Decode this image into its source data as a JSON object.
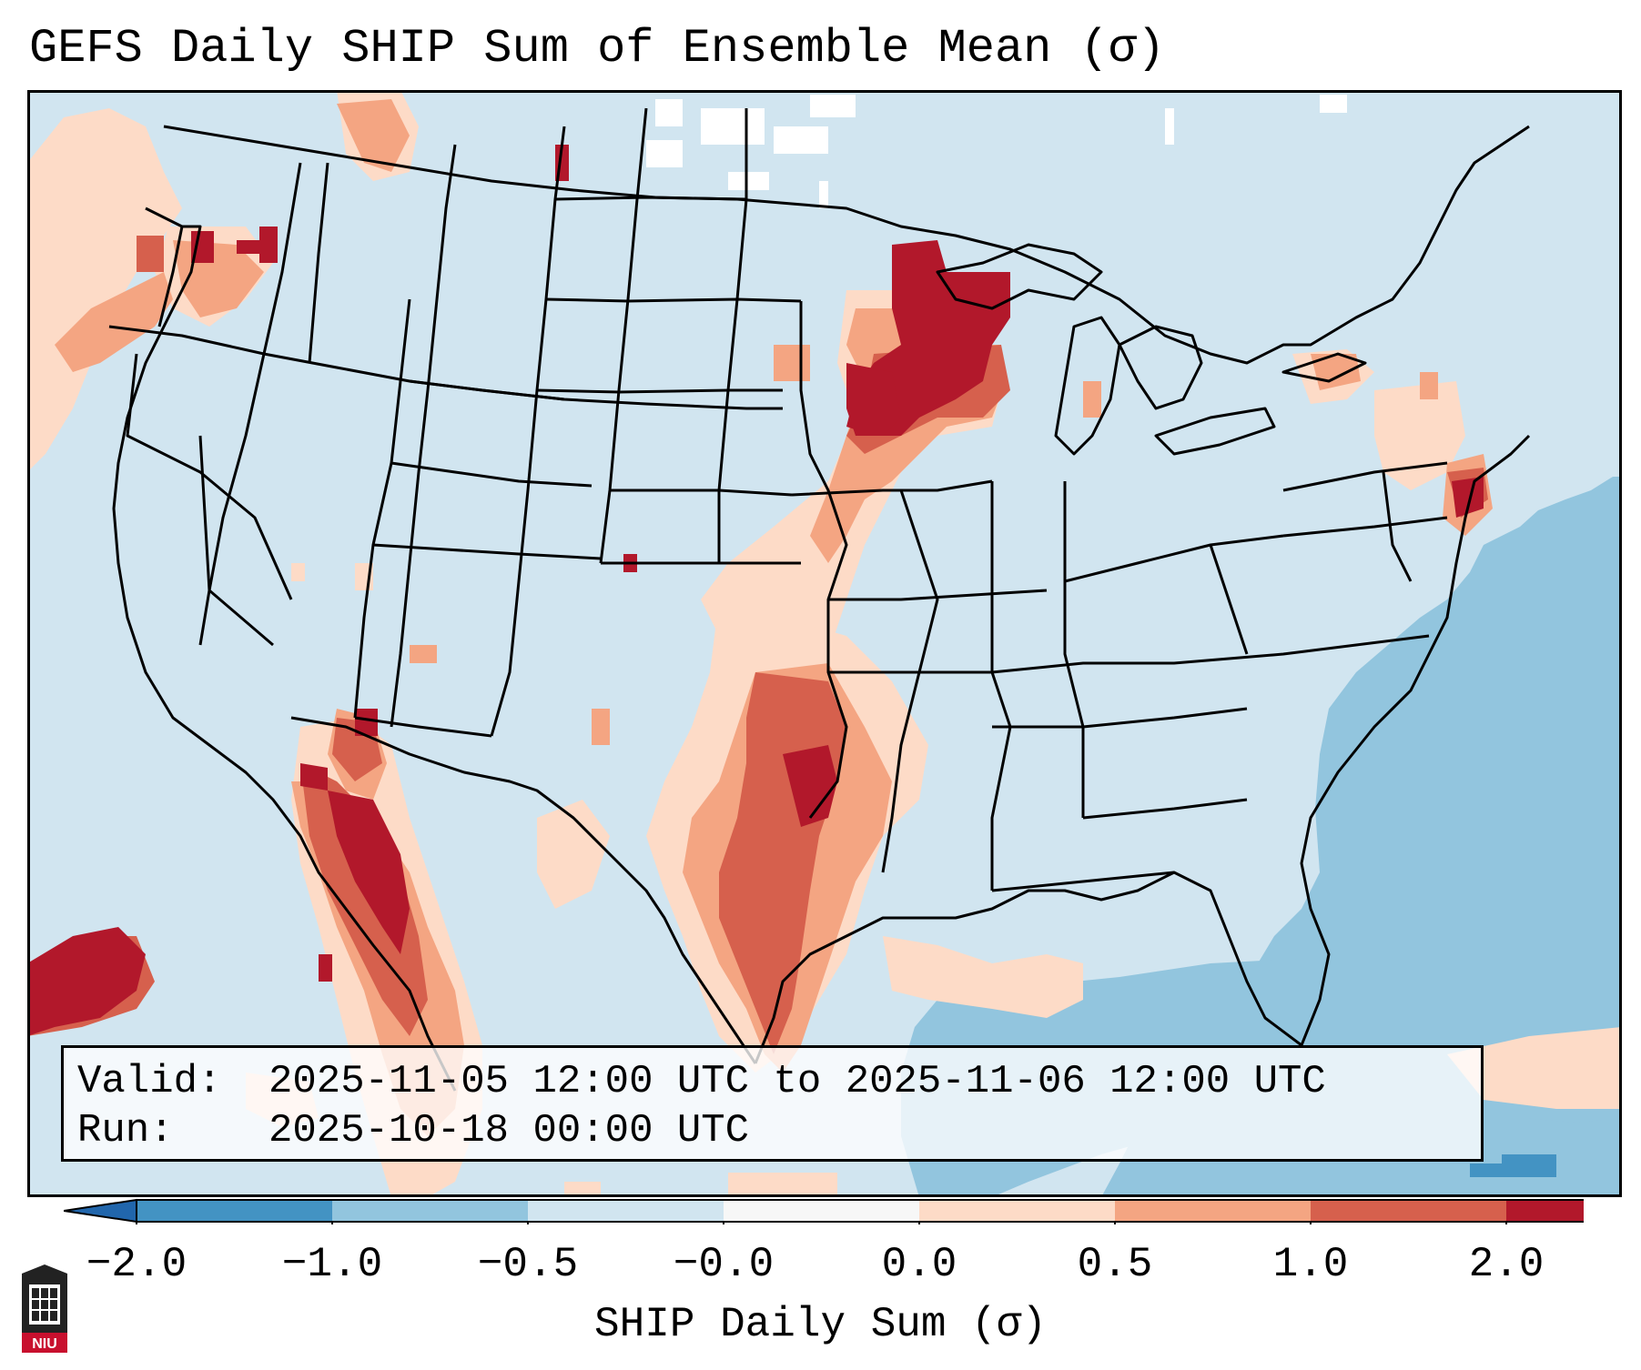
{
  "title": "GEFS Daily SHIP Sum of Ensemble Mean (σ)",
  "info": {
    "valid_label": "Valid:",
    "valid_value": "2025-11-05 12:00 UTC to 2025-11-06 12:00 UTC",
    "run_label": "Run:",
    "run_value": "2025-10-18 00:00 UTC"
  },
  "colorbar": {
    "ticks": [
      "−2.0",
      "−1.0",
      "−0.5",
      "−0.0",
      "0.0",
      "0.5",
      "1.0",
      "2.0"
    ],
    "colors": [
      "#4393c3",
      "#92c5de",
      "#d1e5f0",
      "#f7f7f7",
      "#fddbc7",
      "#f4a582",
      "#d6604d",
      "#b2182b"
    ],
    "extend_low_color": "#2166ac",
    "extend_high_color": "#b2182b",
    "label": "SHIP Daily Sum (σ)"
  },
  "logo": {
    "text": "NIU",
    "name": "niu-logo"
  }
}
